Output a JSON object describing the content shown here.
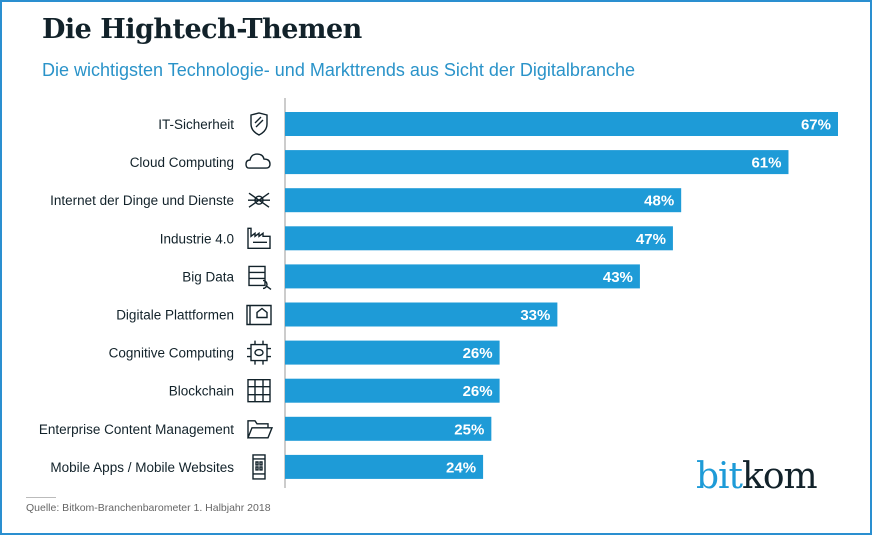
{
  "title": "Die Hightech-Themen",
  "subtitle": "Die wichtigsten Technologie- und Markttrends aus Sicht der Digitalbranche",
  "source": "Quelle: Bitkom-Branchenbarometer 1. Halbjahr 2018",
  "logo": {
    "part1": "bit",
    "part2": "kom"
  },
  "colors": {
    "bar": "#1e9bd7",
    "frame": "#2a8fd0",
    "title": "#12222a",
    "subtitle": "#2a93c9"
  },
  "chart_data": {
    "type": "bar",
    "orientation": "horizontal",
    "categories": [
      "IT-Sicherheit",
      "Cloud Computing",
      "Internet der Dinge und Dienste",
      "Industrie 4.0",
      "Big Data",
      "Digitale Plattformen",
      "Cognitive Computing",
      "Blockchain",
      "Enterprise Content Management",
      "Mobile Apps / Mobile Websites"
    ],
    "icons": [
      "shield-icon",
      "cloud-icon",
      "atom-network-icon",
      "factory-icon",
      "database-search-icon",
      "tablet-home-icon",
      "chip-brain-icon",
      "grid-blocks-icon",
      "folder-icon",
      "smartphone-icon"
    ],
    "values": [
      67,
      61,
      48,
      47,
      43,
      33,
      26,
      26,
      25,
      24
    ],
    "value_labels": [
      "67%",
      "61%",
      "48%",
      "47%",
      "43%",
      "33%",
      "26%",
      "26%",
      "25%",
      "24%"
    ],
    "xlim": [
      0,
      67
    ],
    "grid": false
  }
}
